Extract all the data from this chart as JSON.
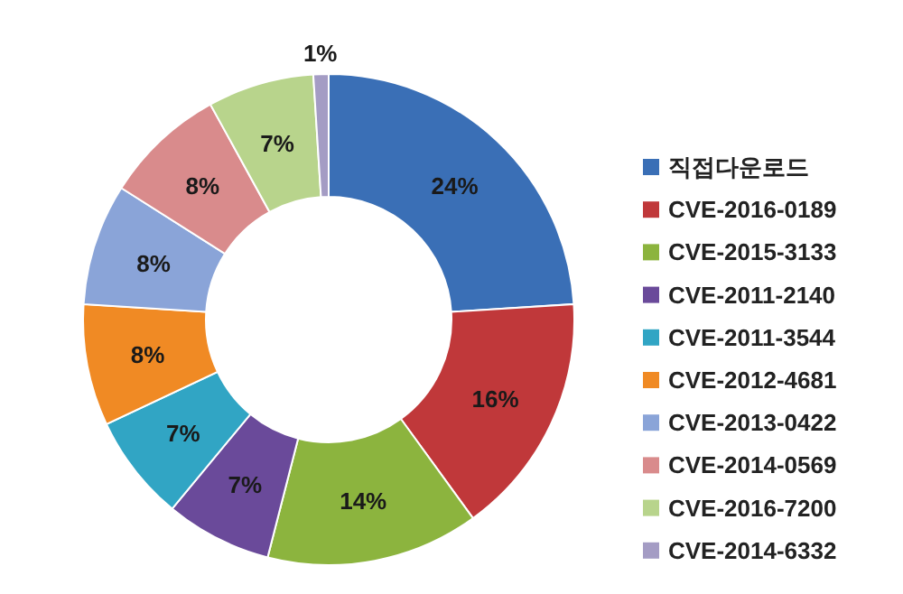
{
  "chart_data": {
    "type": "donut",
    "categories": [
      "직접다운로드",
      "CVE-2016-0189",
      "CVE-2015-3133",
      "CVE-2011-2140",
      "CVE-2011-3544",
      "CVE-2012-4681",
      "CVE-2013-0422",
      "CVE-2014-0569",
      "CVE-2016-7200",
      "CVE-2014-6332"
    ],
    "values": [
      24,
      16,
      14,
      7,
      7,
      8,
      8,
      8,
      7,
      1
    ],
    "value_labels": [
      "24%",
      "16%",
      "14%",
      "7%",
      "7%",
      "8%",
      "8%",
      "8%",
      "7%",
      "1%"
    ],
    "colors": [
      "#3a6fb6",
      "#c0383a",
      "#8cb43e",
      "#6a4a9a",
      "#31a5c4",
      "#f08a24",
      "#8aa4d8",
      "#d98b8c",
      "#b8d48c",
      "#a49cc4"
    ],
    "legend": "right"
  }
}
